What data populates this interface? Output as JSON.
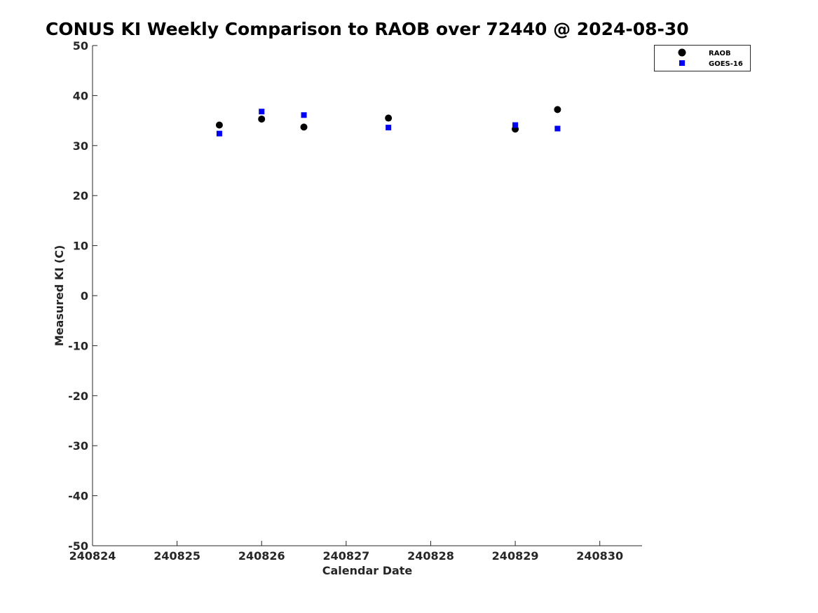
{
  "chart_data": {
    "type": "scatter",
    "title": "CONUS KI Weekly Comparison to RAOB over 72440 @ 2024-08-30",
    "xlabel": "Calendar Date",
    "ylabel": "Measured KI (C)",
    "xlim": [
      240824,
      240830.5
    ],
    "ylim": [
      -50,
      50
    ],
    "x_ticks": [
      240824,
      240825,
      240826,
      240827,
      240828,
      240829,
      240830
    ],
    "x_tick_labels": [
      "240824",
      "240825",
      "240826",
      "240827",
      "240828",
      "240829",
      "240830"
    ],
    "y_ticks": [
      50,
      40,
      30,
      20,
      10,
      0,
      -10,
      -20,
      -30,
      -40,
      -50
    ],
    "y_tick_labels": [
      "50",
      "40",
      "30",
      "20",
      "10",
      "0",
      "-10",
      "-20",
      "-30",
      "-40",
      "-50"
    ],
    "grid": false,
    "legend_position": "top-right",
    "series": [
      {
        "name": "RAOB",
        "marker": "circle",
        "color": "#000000",
        "x": [
          240825.5,
          240826,
          240826.5,
          240827.5,
          240829,
          240829.5
        ],
        "y": [
          34.1,
          35.3,
          33.7,
          35.5,
          33.3,
          37.2
        ]
      },
      {
        "name": "GOES-16",
        "marker": "square",
        "color": "#0000ff",
        "x": [
          240825.5,
          240826,
          240826.5,
          240827.5,
          240829,
          240829.5
        ],
        "y": [
          32.4,
          36.8,
          36.1,
          33.6,
          34.1,
          33.4
        ]
      }
    ]
  }
}
